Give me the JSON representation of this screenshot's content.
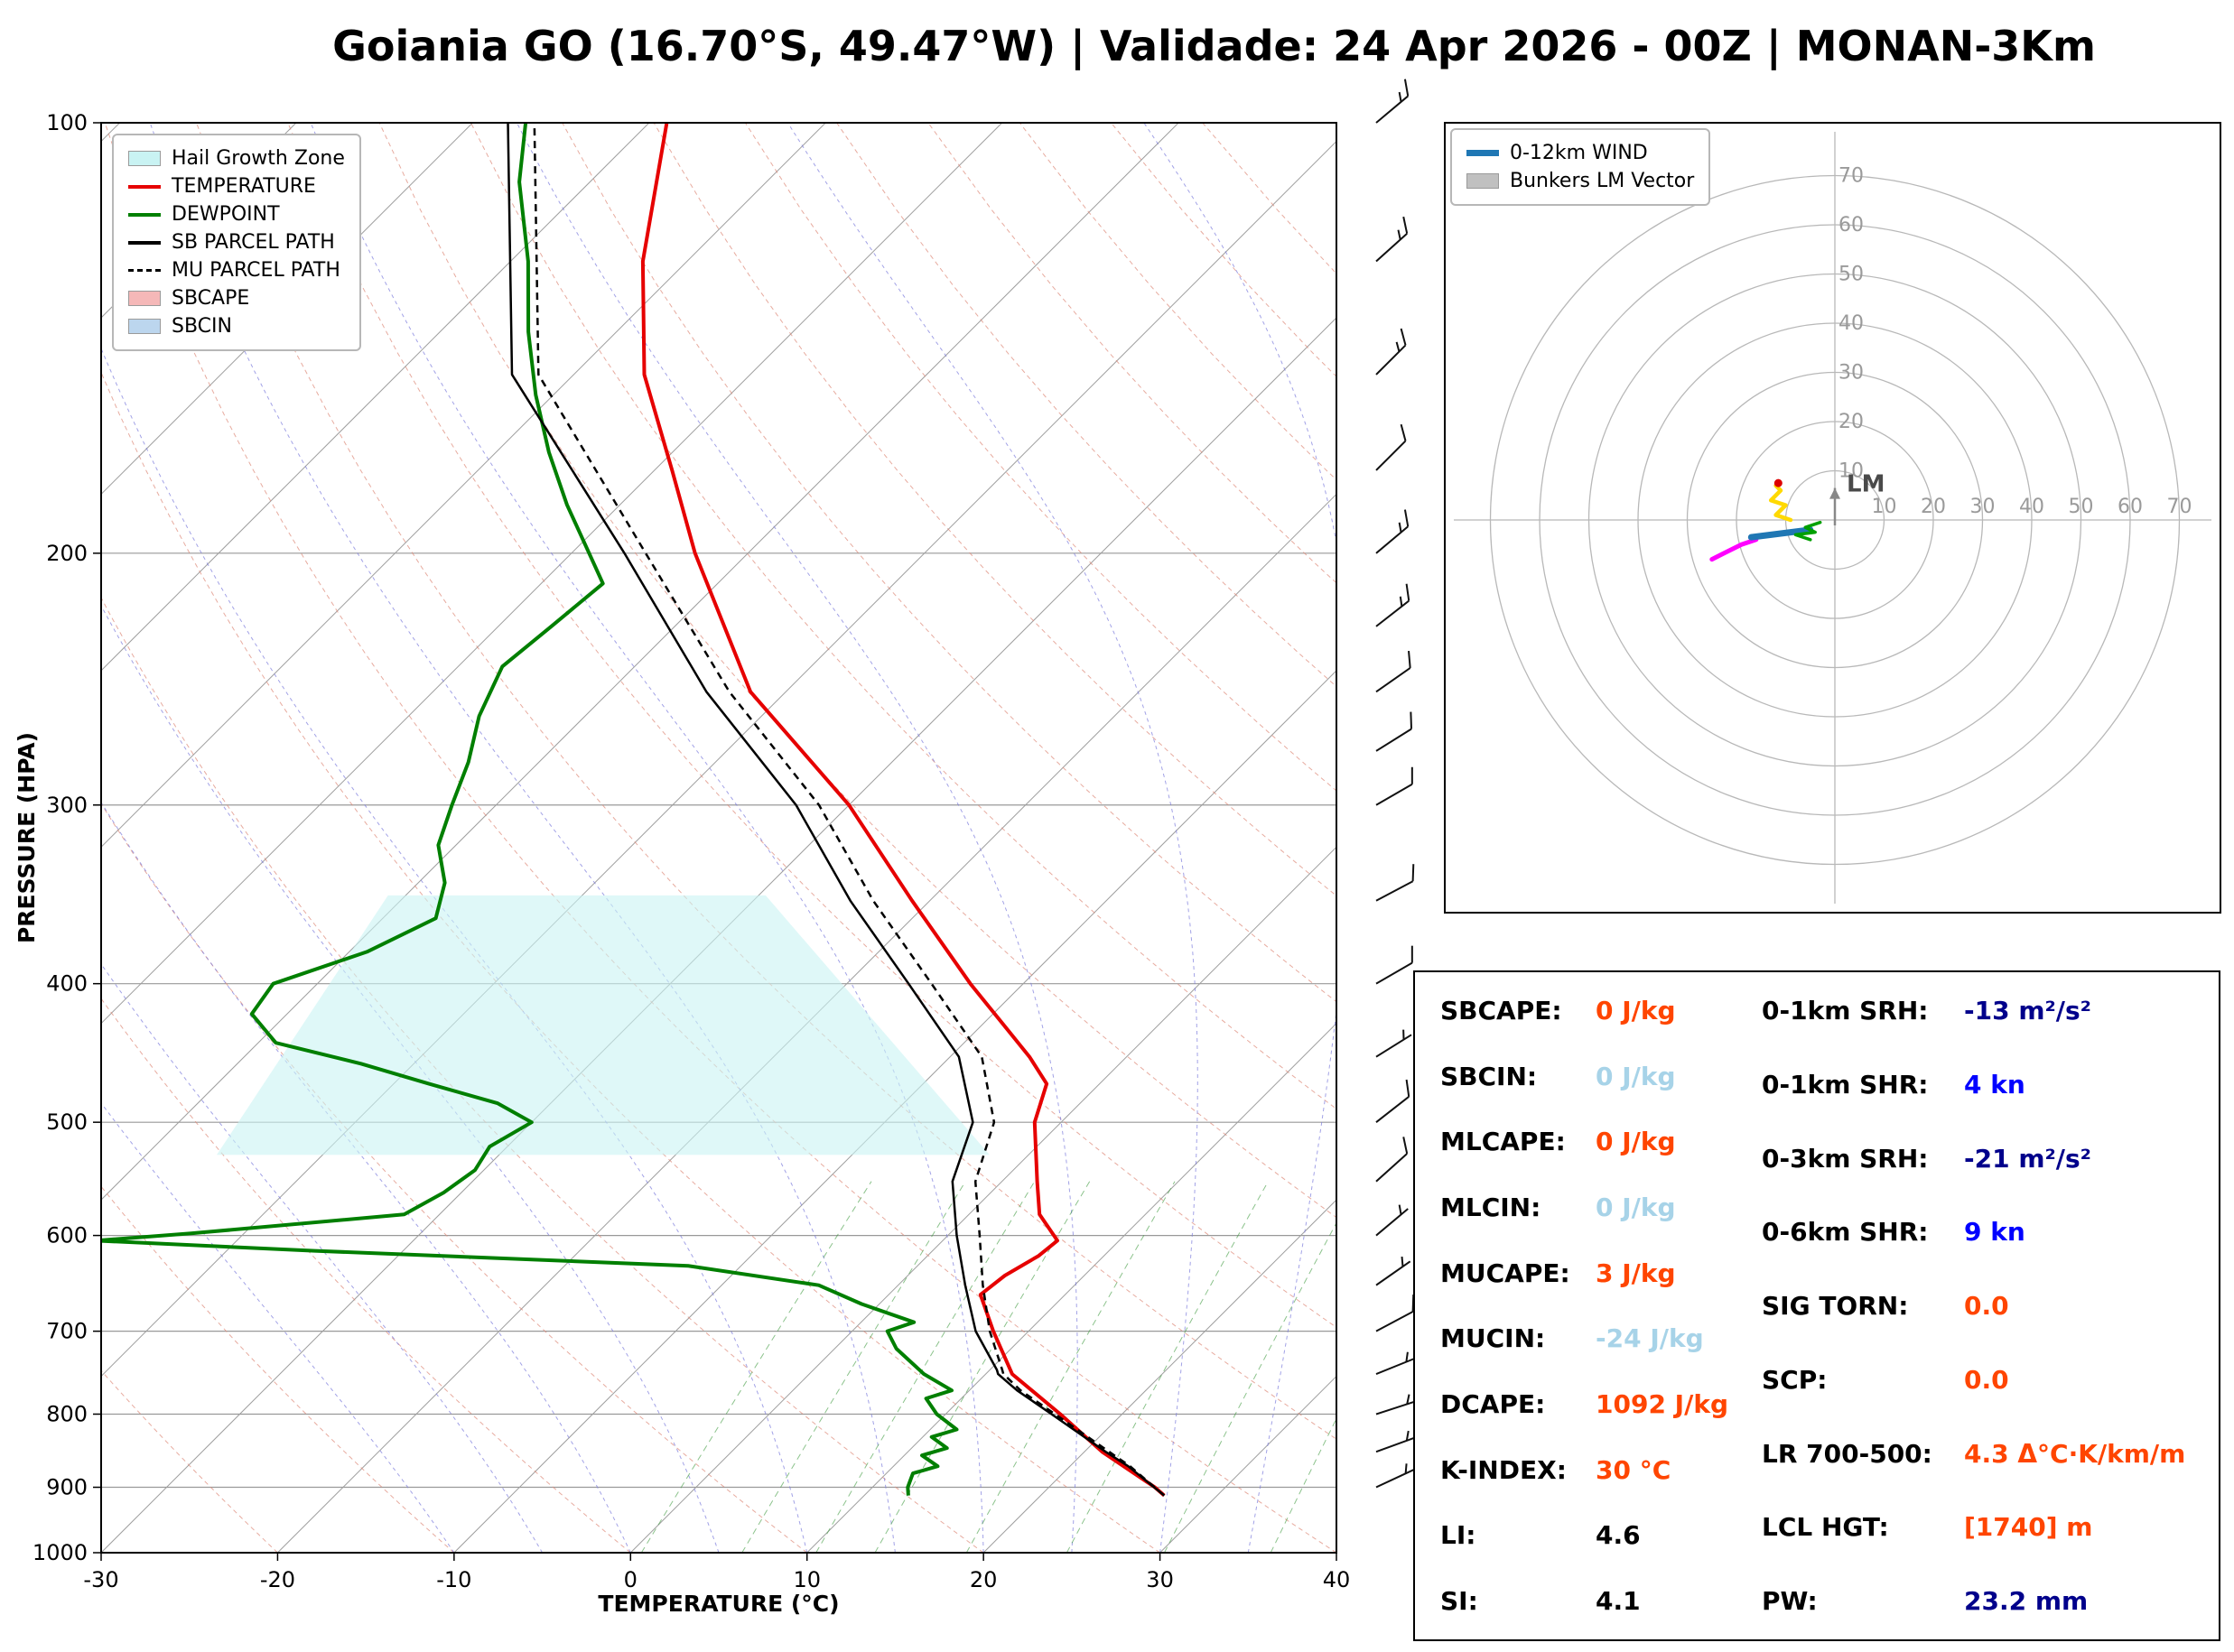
{
  "title": "Goiania GO (16.70°S, 49.47°W) | Validade: 24 Apr 2026 - 00Z | MONAN-3Km",
  "chart_data": [
    {
      "name": "skewt",
      "type": "line",
      "title": "Skew-T Log-P sounding",
      "xlabel": "TEMPERATURE (°C)",
      "ylabel": "PRESSURE (HPA)",
      "xlim": [
        -30,
        40
      ],
      "ylim": [
        1000,
        100
      ],
      "y_scale": "log",
      "skew": "45deg",
      "x_ticks": [
        -30,
        -20,
        -10,
        0,
        10,
        20,
        30,
        40
      ],
      "p_ticks": [
        100,
        200,
        300,
        400,
        500,
        600,
        700,
        800,
        900,
        1000
      ],
      "legend": [
        {
          "label": "Hail Growth Zone",
          "color": "#c9f3f3",
          "swatch": "patch"
        },
        {
          "label": "TEMPERATURE",
          "color": "#e60000",
          "swatch": "line"
        },
        {
          "label": "DEWPOINT",
          "color": "#007f00",
          "swatch": "line"
        },
        {
          "label": "SB PARCEL PATH",
          "color": "#000000",
          "swatch": "line"
        },
        {
          "label": "MU PARCEL PATH",
          "color": "#000000",
          "swatch": "dash"
        },
        {
          "label": "SBCAPE",
          "color": "#f5b8b8",
          "swatch": "patch"
        },
        {
          "label": "SBCIN",
          "color": "#bcd6ee",
          "swatch": "patch"
        }
      ],
      "series": [
        {
          "name": "TEMPERATURE",
          "color": "#e60000",
          "width": 4,
          "dash": null,
          "pressure": [
            912,
            900,
            850,
            800,
            750,
            700,
            660,
            640,
            620,
            605,
            580,
            550,
            500,
            470,
            450,
            400,
            350,
            300,
            250,
            200,
            175,
            150,
            125,
            100
          ],
          "temperature_c": [
            27,
            26,
            21,
            16.5,
            11.5,
            8,
            5.2,
            5.5,
            6.3,
            6.5,
            4,
            2,
            -1.5,
            -3,
            -5.5,
            -13,
            -21,
            -30,
            -42,
            -53,
            -59,
            -66,
            -72.5,
            -79
          ]
        },
        {
          "name": "DEWPOINT",
          "color": "#007f00",
          "width": 4,
          "dash": null,
          "pressure": [
            912,
            900,
            880,
            870,
            855,
            845,
            830,
            820,
            800,
            780,
            770,
            750,
            720,
            700,
            690,
            670,
            650,
            630,
            615,
            605,
            598,
            580,
            560,
            540,
            520,
            500,
            485,
            470,
            455,
            440,
            420,
            400,
            380,
            360,
            340,
            320,
            300,
            280,
            260,
            240,
            225,
            210,
            200,
            185,
            170,
            155,
            140,
            125,
            110,
            100
          ],
          "temperature_c": [
            12.5,
            12,
            11.5,
            12.5,
            11,
            12,
            10.5,
            11.5,
            9.5,
            8,
            9,
            6.5,
            3.5,
            2,
            3,
            -1,
            -4.5,
            -13,
            -35,
            -48,
            -43,
            -32,
            -31,
            -30.5,
            -31,
            -30,
            -33,
            -38,
            -43,
            -49,
            -52,
            -52.5,
            -49,
            -47,
            -48.5,
            -51,
            -52.5,
            -54,
            -56,
            -57.5,
            -57,
            -56.5,
            -59,
            -63,
            -67,
            -71,
            -75,
            -79,
            -84,
            -87
          ]
        },
        {
          "name": "SB PARCEL PATH",
          "color": "#000000",
          "width": 2.5,
          "dash": null,
          "pressure": [
            912,
            870,
            850,
            800,
            770,
            750,
            745,
            700,
            650,
            600,
            550,
            500,
            450,
            400,
            350,
            300,
            250,
            200,
            150,
            100
          ],
          "temperature_c": [
            27,
            23.3,
            21.2,
            16,
            12.7,
            10.7,
            10.4,
            7,
            3.8,
            0.5,
            -2.8,
            -5,
            -9.5,
            -16.5,
            -24.5,
            -33,
            -44.5,
            -57,
            -73.5,
            -88
          ]
        },
        {
          "name": "MU PARCEL PATH",
          "color": "#000000",
          "width": 2.5,
          "dash": "8 6",
          "pressure": [
            912,
            870,
            850,
            800,
            770,
            750,
            745,
            700,
            650,
            600,
            550,
            500,
            450,
            400,
            350,
            300,
            250,
            200,
            150,
            100
          ],
          "temperature_c": [
            27,
            23.4,
            21.4,
            16.2,
            12.9,
            11,
            10.7,
            7.8,
            4.8,
            1.8,
            -1.5,
            -3.8,
            -8.2,
            -15.2,
            -23.2,
            -31.7,
            -43.2,
            -55.8,
            -72,
            -86.5
          ]
        }
      ],
      "hail_growth_zone": {
        "color": "#c9f3f3",
        "pressure": [
          527,
          527,
          347,
          347
        ],
        "temperature_c": [
          -46,
          -2.2,
          -29.6,
          -51
        ]
      },
      "wind_barbs": [
        {
          "p": 100,
          "spd": 15,
          "dir": 50
        },
        {
          "p": 125,
          "spd": 15,
          "dir": 48
        },
        {
          "p": 150,
          "spd": 15,
          "dir": 45
        },
        {
          "p": 175,
          "spd": 10,
          "dir": 45
        },
        {
          "p": 200,
          "spd": 15,
          "dir": 50
        },
        {
          "p": 225,
          "spd": 15,
          "dir": 52
        },
        {
          "p": 250,
          "spd": 10,
          "dir": 55
        },
        {
          "p": 275,
          "spd": 10,
          "dir": 58
        },
        {
          "p": 300,
          "spd": 10,
          "dir": 60
        },
        {
          "p": 350,
          "spd": 10,
          "dir": 62
        },
        {
          "p": 400,
          "spd": 10,
          "dir": 60
        },
        {
          "p": 450,
          "spd": 5,
          "dir": 58
        },
        {
          "p": 500,
          "spd": 10,
          "dir": 52
        },
        {
          "p": 550,
          "spd": 10,
          "dir": 48
        },
        {
          "p": 600,
          "spd": 5,
          "dir": 50
        },
        {
          "p": 650,
          "spd": 5,
          "dir": 55
        },
        {
          "p": 700,
          "spd": 10,
          "dir": 62
        },
        {
          "p": 750,
          "spd": 5,
          "dir": 68
        },
        {
          "p": 800,
          "spd": 5,
          "dir": 72
        },
        {
          "p": 850,
          "spd": 5,
          "dir": 70
        },
        {
          "p": 900,
          "spd": 5,
          "dir": 65
        }
      ]
    },
    {
      "name": "hodograph",
      "type": "line",
      "units": "kn",
      "rings_kn": [
        10,
        20,
        30,
        40,
        50,
        60,
        70
      ],
      "legend": [
        {
          "label": "0-12km WIND",
          "color": "#1f77b4",
          "swatch": "thick"
        },
        {
          "label": "Bunkers LM Vector",
          "color": "#c0c0c0",
          "swatch": "patch"
        }
      ],
      "lm_label": "LM",
      "lm_vector": {
        "u": 0,
        "v": 6.5
      },
      "segments": [
        {
          "name": "9-12km",
          "color": "#ff00ff",
          "width": 5,
          "points": [
            [
              -16,
              -4
            ],
            [
              -19,
              -5
            ],
            [
              -22,
              -6.5
            ],
            [
              -25,
              -8
            ]
          ]
        },
        {
          "name": "0-12km-wind",
          "color": "#1f77b4",
          "width": 7,
          "points": [
            [
              -5,
              -2
            ],
            [
              -9,
              -2.5
            ],
            [
              -13,
              -3
            ],
            [
              -17,
              -3.5
            ]
          ]
        },
        {
          "name": "3-6km",
          "color": "#00a000",
          "width": 3.5,
          "points": [
            [
              -3,
              -0.5
            ],
            [
              -6,
              -1.5
            ],
            [
              -4,
              -2.5
            ],
            [
              -8,
              -3
            ],
            [
              -5,
              -4
            ]
          ]
        },
        {
          "name": "0-3km",
          "color": "#ffd900",
          "width": 4.5,
          "points": [
            [
              -9,
              0
            ],
            [
              -12,
              1
            ],
            [
              -10,
              3
            ],
            [
              -13,
              4
            ],
            [
              -11,
              6
            ],
            [
              -12,
              7
            ]
          ]
        }
      ],
      "markers": [
        {
          "name": "storm-motion",
          "color": "#dd0000",
          "u": -11.5,
          "v": 7.5
        }
      ]
    }
  ],
  "indices": {
    "left": [
      {
        "label": "SBCAPE:",
        "value": "0 J/kg",
        "color": "#ff4500"
      },
      {
        "label": "SBCIN:",
        "value": "0 J/kg",
        "color": "#a7d3e8"
      },
      {
        "label": "MLCAPE:",
        "value": "0 J/kg",
        "color": "#ff4500"
      },
      {
        "label": "MLCIN:",
        "value": "0 J/kg",
        "color": "#a7d3e8"
      },
      {
        "label": "MUCAPE:",
        "value": "3 J/kg",
        "color": "#ff4500"
      },
      {
        "label": "MUCIN:",
        "value": "-24 J/kg",
        "color": "#a7d3e8"
      },
      {
        "label": "DCAPE:",
        "value": "1092 J/kg",
        "color": "#ff4500"
      },
      {
        "label": "K-INDEX:",
        "value": "30 °C",
        "color": "#ff4500"
      },
      {
        "label": "LI:",
        "value": "4.6",
        "color": "#000000"
      },
      {
        "label": "SI:",
        "value": "4.1",
        "color": "#000000"
      }
    ],
    "right": [
      {
        "label": "0-1km SRH:",
        "value": "-13 m²/s²",
        "color": "#00008b"
      },
      {
        "label": "0-1km SHR:",
        "value": "4 kn",
        "color": "#0000ff"
      },
      {
        "label": "0-3km SRH:",
        "value": "-21 m²/s²",
        "color": "#00008b"
      },
      {
        "label": "0-6km SHR:",
        "value": "9 kn",
        "color": "#0000ff"
      },
      {
        "label": "SIG TORN:",
        "value": "0.0",
        "color": "#ff4500"
      },
      {
        "label": "SCP:",
        "value": "0.0",
        "color": "#ff4500"
      },
      {
        "label": "LR 700-500:",
        "value": "4.3 Δ°C·K/km/m",
        "color": "#ff4500"
      },
      {
        "label": "LCL HGT:",
        "value": "[1740] m",
        "color": "#ff4500"
      },
      {
        "label": "PW:",
        "value": "23.2 mm",
        "color": "#00008b"
      }
    ]
  }
}
